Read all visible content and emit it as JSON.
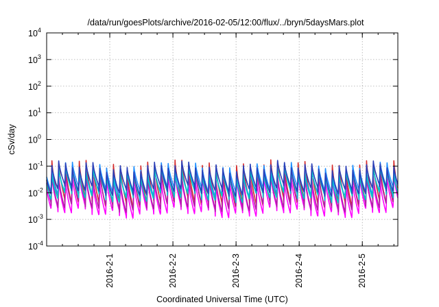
{
  "chart_data": {
    "type": "line",
    "title": "/data/run/goesPlots/archive/2016-02-05/12:00/flux/../bryn/5daysMars.plot",
    "xlabel": "Coordinated Universal Time (UTC)",
    "ylabel": "cSv/day",
    "yscale": "log",
    "ylim": [
      0.0001,
      10000
    ],
    "xlim": [
      "2016-01-31 00:00",
      "2016-02-05 13:30"
    ],
    "grid": true,
    "legend": "none",
    "yticks": [
      {
        "base": "10",
        "exp": "-4",
        "value": 0.0001
      },
      {
        "base": "10",
        "exp": "-3",
        "value": 0.001
      },
      {
        "base": "10",
        "exp": "-2",
        "value": 0.01
      },
      {
        "base": "10",
        "exp": "-1",
        "value": 0.1
      },
      {
        "base": "10",
        "exp": "0",
        "value": 1
      },
      {
        "base": "10",
        "exp": "1",
        "value": 10
      },
      {
        "base": "10",
        "exp": "2",
        "value": 100
      },
      {
        "base": "10",
        "exp": "3",
        "value": 1000
      },
      {
        "base": "10",
        "exp": "4",
        "value": 10000
      }
    ],
    "xticks": [
      {
        "label": "2016-2-1",
        "date": "2016-02-01 00:00"
      },
      {
        "label": "2016-2-2",
        "date": "2016-02-02 00:00"
      },
      {
        "label": "2016-2-3",
        "date": "2016-02-03 00:00"
      },
      {
        "label": "2016-2-4",
        "date": "2016-02-04 00:00"
      },
      {
        "label": "2016-2-5",
        "date": "2016-02-05 00:00"
      }
    ],
    "pulse_period_hours": 2.6,
    "series": [
      {
        "color": "#d62c2c",
        "peak": 0.105,
        "trough": 0.0042
      },
      {
        "color": "#ff00ff",
        "peak": 0.03,
        "trough": 0.0018
      },
      {
        "color": "#b01fa6",
        "peak": 0.05,
        "trough": 0.003
      },
      {
        "color": "#1e90ff",
        "peak": 0.085,
        "trough": 0.0105
      },
      {
        "color": "#00c8c8",
        "peak": 0.06,
        "trough": 0.007
      },
      {
        "color": "#2a3fb8",
        "peak": 0.095,
        "trough": 0.012
      }
    ]
  }
}
